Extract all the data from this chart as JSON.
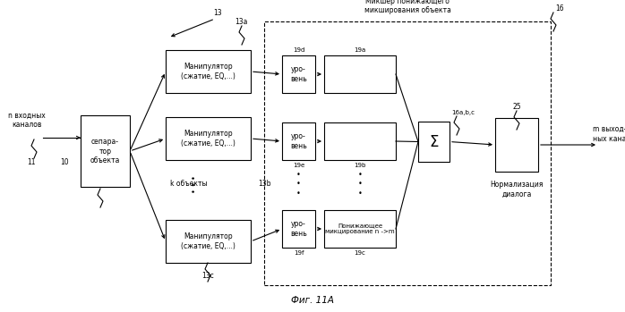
{
  "title": "Фиг. 11А",
  "bg_color": "#ffffff",
  "fig_width": 6.98,
  "fig_height": 3.49,
  "dpi": 100,
  "labels": {
    "n_input": "n входных\nканалов",
    "label_11": "11",
    "label_10": "10",
    "separator": "сепара-\nтор\nобъекта",
    "label_13": "13",
    "label_13a": "13а",
    "label_13b": "13b",
    "label_13c": "13с",
    "manip": "Манипулятор\n(сжатие, EQ,...)",
    "k_objects": "k объекты",
    "dashed_title": "Микшер понижающего\nмикширования объекта",
    "label_16": "16",
    "label_19d": "19d",
    "label_19a": "19а",
    "label_19e": "19е",
    "label_19b": "19b",
    "label_19f": "19f",
    "label_19c": "19с",
    "level": "уро-\nвень",
    "downmix": "Понижающее\nмикцирование n ->m",
    "sigma": "Σ",
    "label_16abc": "16а,b,с",
    "label_25": "25",
    "normalization": "Нормализация\nдиалога",
    "m_output": "m выход-\nных каналов"
  }
}
